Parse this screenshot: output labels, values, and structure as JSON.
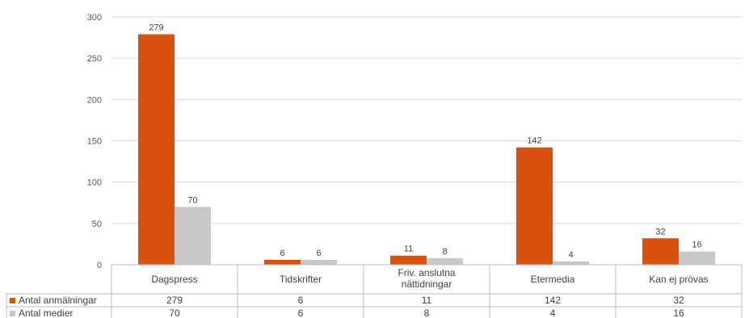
{
  "chart_data": {
    "type": "bar",
    "categories": [
      [
        "Dagspress"
      ],
      [
        "Tidskrifter"
      ],
      [
        "Friv. anslutna",
        "nättidningar"
      ],
      [
        "Etermedia"
      ],
      [
        "Kan ej prövas"
      ]
    ],
    "series": [
      {
        "name": "Antal anmälningar",
        "color": "#d9510c",
        "values": [
          279,
          6,
          11,
          142,
          32
        ]
      },
      {
        "name": "Antal medier",
        "color": "#c8c8c8",
        "values": [
          70,
          6,
          8,
          4,
          16
        ]
      }
    ],
    "ylim": [
      0,
      300
    ],
    "yticks": [
      0,
      50,
      100,
      150,
      200,
      250,
      300
    ],
    "grid": true,
    "legend": "data-table-left",
    "data_labels": true
  }
}
